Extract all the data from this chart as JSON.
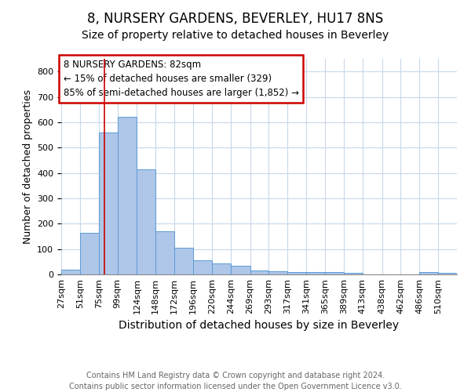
{
  "title": "8, NURSERY GARDENS, BEVERLEY, HU17 8NS",
  "subtitle": "Size of property relative to detached houses in Beverley",
  "xlabel": "Distribution of detached houses by size in Beverley",
  "ylabel": "Number of detached properties",
  "bin_labels": [
    "27sqm",
    "51sqm",
    "75sqm",
    "99sqm",
    "124sqm",
    "148sqm",
    "172sqm",
    "196sqm",
    "220sqm",
    "244sqm",
    "269sqm",
    "293sqm",
    "317sqm",
    "341sqm",
    "365sqm",
    "389sqm",
    "413sqm",
    "438sqm",
    "462sqm",
    "486sqm",
    "510sqm"
  ],
  "values": [
    20,
    163,
    560,
    620,
    413,
    170,
    105,
    55,
    44,
    35,
    15,
    12,
    10,
    10,
    8,
    6,
    0,
    0,
    0,
    8,
    6
  ],
  "bin_edges": [
    27,
    51,
    75,
    99,
    124,
    148,
    172,
    196,
    220,
    244,
    269,
    293,
    317,
    341,
    365,
    389,
    413,
    438,
    462,
    486,
    510
  ],
  "bar_color": "#aec6e8",
  "bar_edge_color": "#5b9bd5",
  "grid_color": "#c8d8ea",
  "property_size": 82,
  "red_line_color": "#cc0000",
  "annotation_box_text": "8 NURSERY GARDENS: 82sqm\n← 15% of detached houses are smaller (329)\n85% of semi-detached houses are larger (1,852) →",
  "annotation_box_color": "#cc0000",
  "ylim": [
    0,
    850
  ],
  "yticks": [
    0,
    100,
    200,
    300,
    400,
    500,
    600,
    700,
    800
  ],
  "footnote": "Contains HM Land Registry data © Crown copyright and database right 2024.\nContains public sector information licensed under the Open Government Licence v3.0.",
  "title_fontsize": 12,
  "subtitle_fontsize": 10,
  "xlabel_fontsize": 10,
  "ylabel_fontsize": 9,
  "tick_fontsize": 8,
  "annotation_fontsize": 8.5,
  "footnote_fontsize": 7
}
